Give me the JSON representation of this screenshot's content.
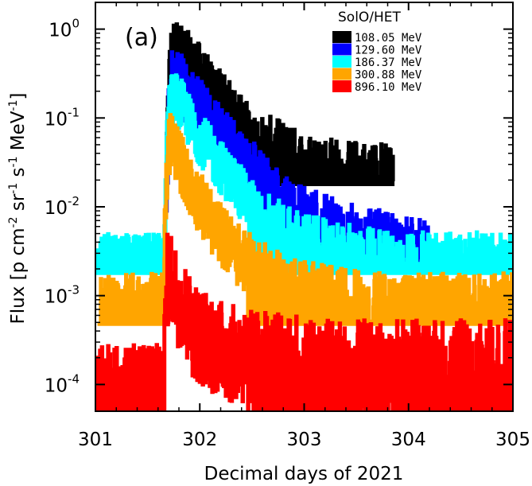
{
  "chart_data": {
    "type": "line",
    "panel_label": "(a)",
    "title": "",
    "xlabel": "Decimal days of 2021",
    "ylabel_parts": {
      "pre": "Flux [p cm",
      "exp1": "-2",
      "mid1": " sr",
      "exp2": "-1",
      "mid2": " s",
      "exp3": "-1",
      "post": " MeV",
      "exp4": "-1",
      "end": "]"
    },
    "xlim": [
      301,
      305
    ],
    "ylim": [
      5e-05,
      2
    ],
    "yscale": "log",
    "x_ticks": [
      301,
      302,
      303,
      304,
      305
    ],
    "x_tick_labels": [
      "301",
      "302",
      "303",
      "304",
      "305"
    ],
    "y_ticks": [
      {
        "value": 1,
        "base": "10",
        "exp": "0"
      },
      {
        "value": 0.1,
        "base": "10",
        "exp": "-1"
      },
      {
        "value": 0.01,
        "base": "10",
        "exp": "-2"
      },
      {
        "value": 0.001,
        "base": "10",
        "exp": "-3"
      },
      {
        "value": 0.0001,
        "base": "10",
        "exp": "-4"
      }
    ],
    "legend": {
      "title": "SolO/HET",
      "position": "top-right"
    },
    "series": [
      {
        "name": "108.05 MeV",
        "color": "#000000",
        "x": [
          301.68,
          301.7,
          301.72,
          301.75,
          301.78,
          301.82,
          301.86,
          301.9,
          301.95,
          302.0,
          302.1,
          302.2,
          302.3,
          302.4,
          302.5,
          302.6,
          302.7,
          302.8,
          302.9,
          303.0,
          303.1,
          303.2,
          303.3,
          303.4,
          303.55,
          303.7,
          303.85
        ],
        "values": [
          0.02,
          0.2,
          0.45,
          0.6,
          0.55,
          0.5,
          0.45,
          0.4,
          0.35,
          0.3,
          0.2,
          0.15,
          0.11,
          0.08,
          0.06,
          0.05,
          0.045,
          0.04,
          0.035,
          0.03,
          0.028,
          0.027,
          0.026,
          0.025,
          0.025,
          0.024,
          0.024
        ],
        "noise": 0.35,
        "floor": 0.018
      },
      {
        "name": "129.60 MeV",
        "color": "#0000ff",
        "x": [
          301.68,
          301.7,
          301.72,
          301.75,
          301.78,
          301.82,
          301.86,
          301.9,
          301.95,
          302.0,
          302.1,
          302.2,
          302.3,
          302.4,
          302.5,
          302.6,
          302.7,
          302.8,
          302.9,
          303.0,
          303.1,
          303.2,
          303.3,
          303.4,
          303.6,
          303.8,
          304.0,
          304.2
        ],
        "values": [
          0.01,
          0.12,
          0.25,
          0.28,
          0.27,
          0.24,
          0.2,
          0.17,
          0.14,
          0.12,
          0.09,
          0.07,
          0.05,
          0.035,
          0.025,
          0.018,
          0.014,
          0.011,
          0.009,
          0.008,
          0.007,
          0.006,
          0.0055,
          0.005,
          0.0045,
          0.004,
          0.0035,
          0.003
        ],
        "noise": 0.35,
        "floor": 0.002
      },
      {
        "name": "186.37 MeV",
        "color": "#00ffff",
        "x": [
          301.66,
          301.68,
          301.7,
          301.72,
          301.75,
          301.8,
          301.85,
          301.9,
          302.0,
          302.1,
          302.2,
          302.3,
          302.4,
          302.5,
          302.6,
          302.7,
          302.8,
          302.9,
          303.0,
          303.2,
          303.4,
          303.6,
          303.8,
          304.0,
          304.2,
          304.4,
          304.6,
          304.8,
          305.0
        ],
        "values": [
          0.003,
          0.05,
          0.12,
          0.16,
          0.17,
          0.15,
          0.12,
          0.09,
          0.06,
          0.04,
          0.028,
          0.02,
          0.014,
          0.01,
          0.008,
          0.0065,
          0.0055,
          0.0048,
          0.0042,
          0.0036,
          0.0032,
          0.003,
          0.0028,
          0.0027,
          0.0026,
          0.0026,
          0.0026,
          0.0026,
          0.0026
        ],
        "noise": 0.3,
        "floor": 0.0018,
        "pre_level": 0.0025
      },
      {
        "name": "300.88 MeV",
        "color": "#ffa500",
        "x": [
          301.66,
          301.68,
          301.7,
          301.72,
          301.75,
          301.8,
          301.85,
          301.9,
          302.0,
          302.1,
          302.2,
          302.3,
          302.4,
          302.5,
          302.6,
          302.7,
          302.8,
          302.9,
          303.0,
          303.2,
          303.4,
          303.6,
          303.8,
          304.0,
          304.2,
          304.4,
          304.6,
          304.8,
          305.0
        ],
        "values": [
          0.003,
          0.02,
          0.045,
          0.055,
          0.05,
          0.035,
          0.025,
          0.018,
          0.011,
          0.007,
          0.005,
          0.0035,
          0.0026,
          0.0021,
          0.0018,
          0.0015,
          0.0013,
          0.0012,
          0.0011,
          0.001,
          0.0009,
          0.00085,
          0.0008,
          0.0008,
          0.0008,
          0.0008,
          0.0008,
          0.0008,
          0.0008
        ],
        "noise": 0.35,
        "floor": 0.00048,
        "pre_level": 0.0009
      },
      {
        "name": "896.10 MeV",
        "color": "#ff0000",
        "x": [
          301.66,
          301.68,
          301.7,
          301.72,
          301.75,
          301.8,
          301.85,
          301.9,
          301.95,
          302.0,
          302.1,
          302.2,
          302.3,
          302.5,
          302.7,
          302.9,
          303.1,
          303.3,
          303.5,
          303.7,
          303.9,
          304.1,
          304.3,
          304.5,
          304.7,
          304.9,
          305.0
        ],
        "values": [
          0.0002,
          0.0012,
          0.0018,
          0.0016,
          0.0012,
          0.0009,
          0.0007,
          0.0005,
          0.0004,
          0.00035,
          0.0003,
          0.00025,
          0.00022,
          0.0002,
          0.00018,
          0.00017,
          0.00016,
          0.00016,
          0.00015,
          0.00015,
          0.00015,
          0.00015,
          0.00015,
          0.00015,
          0.00015,
          0.00015,
          0.00015
        ],
        "noise": 0.55,
        "floor": 5e-05,
        "pre_level": 0.00014
      }
    ]
  }
}
